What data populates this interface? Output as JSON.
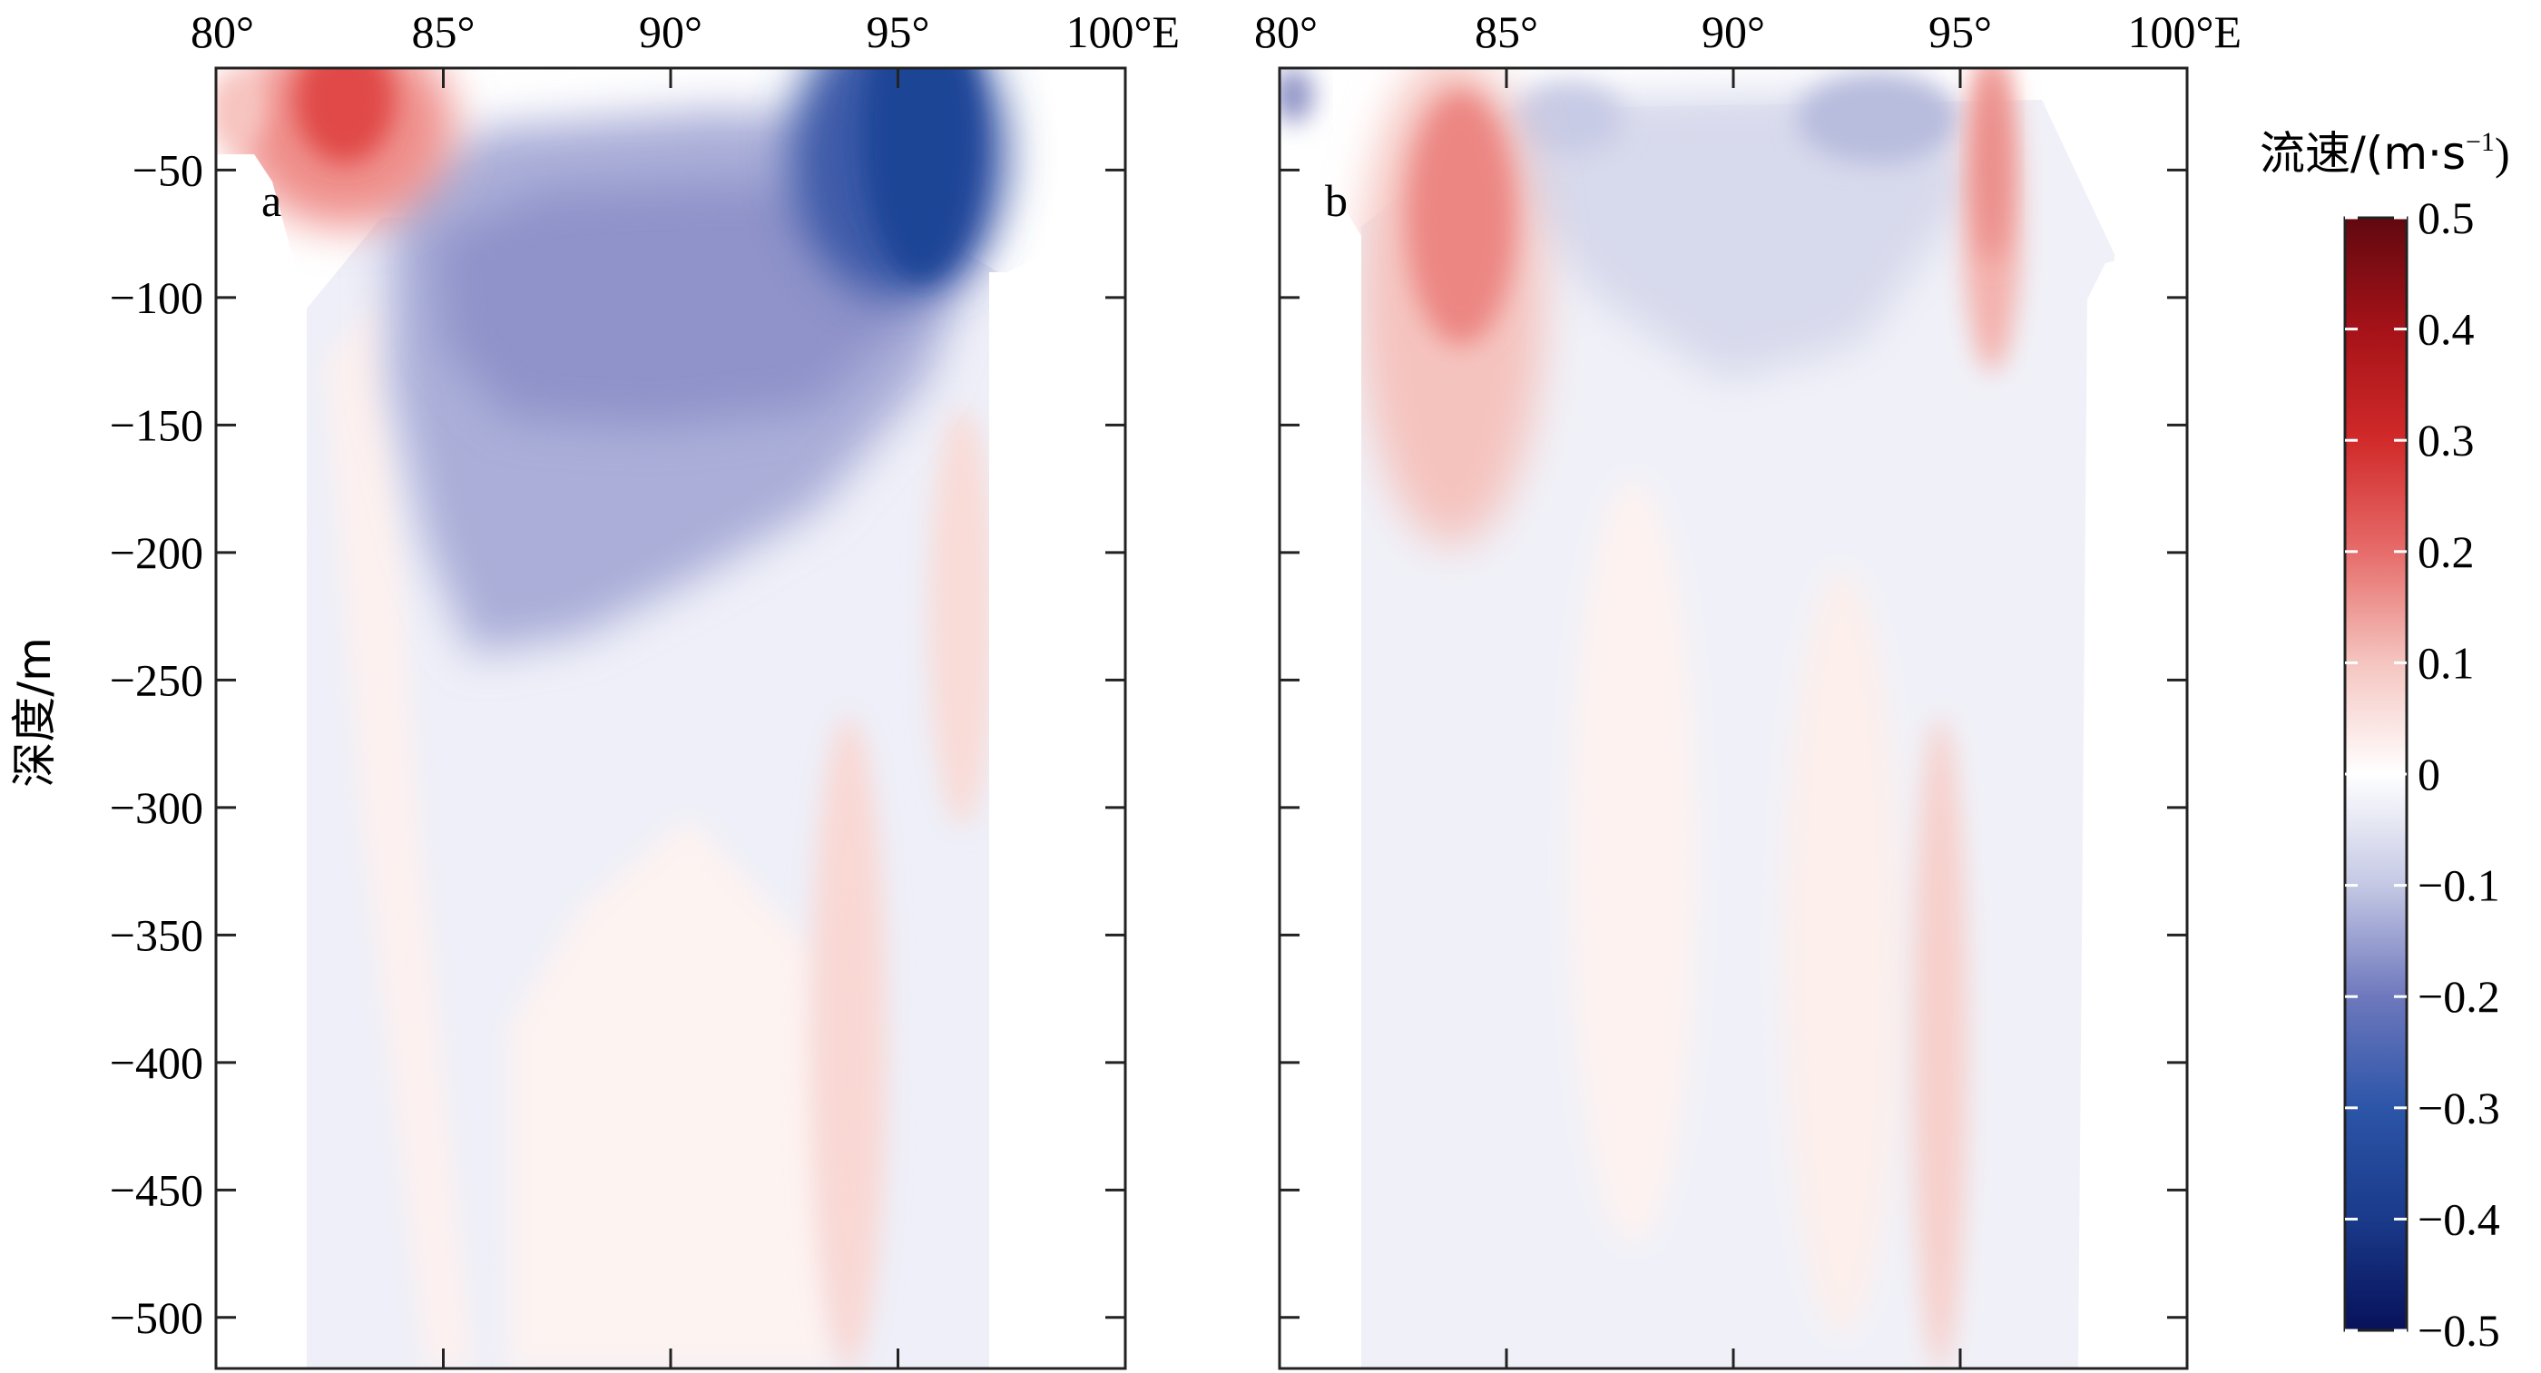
{
  "chart_data": [
    {
      "type": "heatmap",
      "panel_label": "a",
      "x_tick_labels": [
        "80°",
        "85°",
        "90°",
        "95°",
        "100°E"
      ],
      "x_ticks": [
        80,
        85,
        90,
        95,
        100
      ],
      "xlim": [
        80,
        100
      ],
      "ylabel": "深度/m",
      "y_ticks": [
        -50,
        -100,
        -150,
        -200,
        -250,
        -300,
        -350,
        -400,
        -450,
        -500
      ],
      "y_tick_labels": [
        "−50",
        "−100",
        "−150",
        "−200",
        "−250",
        "−300",
        "−350",
        "−400",
        "−450",
        "−500"
      ],
      "ylim": [
        -520,
        -10
      ],
      "features": [
        {
          "lon": 82.6,
          "depth": -20,
          "value": 0.2,
          "desc": "surface eastward jet"
        },
        {
          "lon": 94.7,
          "depth": -40,
          "value": -0.28,
          "desc": "strong westward core"
        },
        {
          "lon": 87.5,
          "depth": -110,
          "value": -0.1,
          "desc": "broad westward flow"
        },
        {
          "lon": 95.5,
          "depth": -240,
          "value": 0.04,
          "desc": "weak eastward"
        },
        {
          "lon": 93.5,
          "depth": -420,
          "value": 0.05,
          "desc": "weak eastward"
        }
      ]
    },
    {
      "type": "heatmap",
      "panel_label": "b",
      "x_tick_labels": [
        "80°",
        "85°",
        "90°",
        "95°",
        "100°E"
      ],
      "x_ticks": [
        80,
        85,
        90,
        95,
        100
      ],
      "xlim": [
        80,
        100
      ],
      "ylim": [
        -520,
        -10
      ],
      "features": [
        {
          "lon": 83.5,
          "depth": -70,
          "value": 0.18,
          "desc": "eastward core"
        },
        {
          "lon": 95.4,
          "depth": -40,
          "value": 0.18,
          "desc": "narrow eastward core"
        },
        {
          "lon": 93.5,
          "depth": -30,
          "value": -0.07,
          "desc": "weak westward"
        },
        {
          "lon": 89.5,
          "depth": -110,
          "value": -0.05,
          "desc": "weak westward"
        },
        {
          "lon": 94.3,
          "depth": -330,
          "value": 0.06,
          "desc": "weak eastward"
        }
      ]
    }
  ],
  "colorbar": {
    "label": "流速/(m·s",
    "label_exp": "−1",
    "label_end": ")",
    "ticks": [
      0.5,
      0.4,
      0.3,
      0.2,
      0.1,
      0,
      -0.1,
      -0.2,
      -0.3,
      -0.4,
      -0.5
    ],
    "tick_labels": [
      "0.5",
      "0.4",
      "0.3",
      "0.2",
      "0.1",
      "0",
      "−0.1",
      "−0.2",
      "−0.3",
      "−0.4",
      "−0.5"
    ],
    "range": [
      -0.5,
      0.5
    ],
    "colors": [
      "#08115a",
      "#1a3a8a",
      "#2c55a8",
      "#6e78bd",
      "#c4c8e4",
      "#ffffff",
      "#f5c5c0",
      "#e66c6a",
      "#d12a2a",
      "#a51218",
      "#610810"
    ]
  }
}
